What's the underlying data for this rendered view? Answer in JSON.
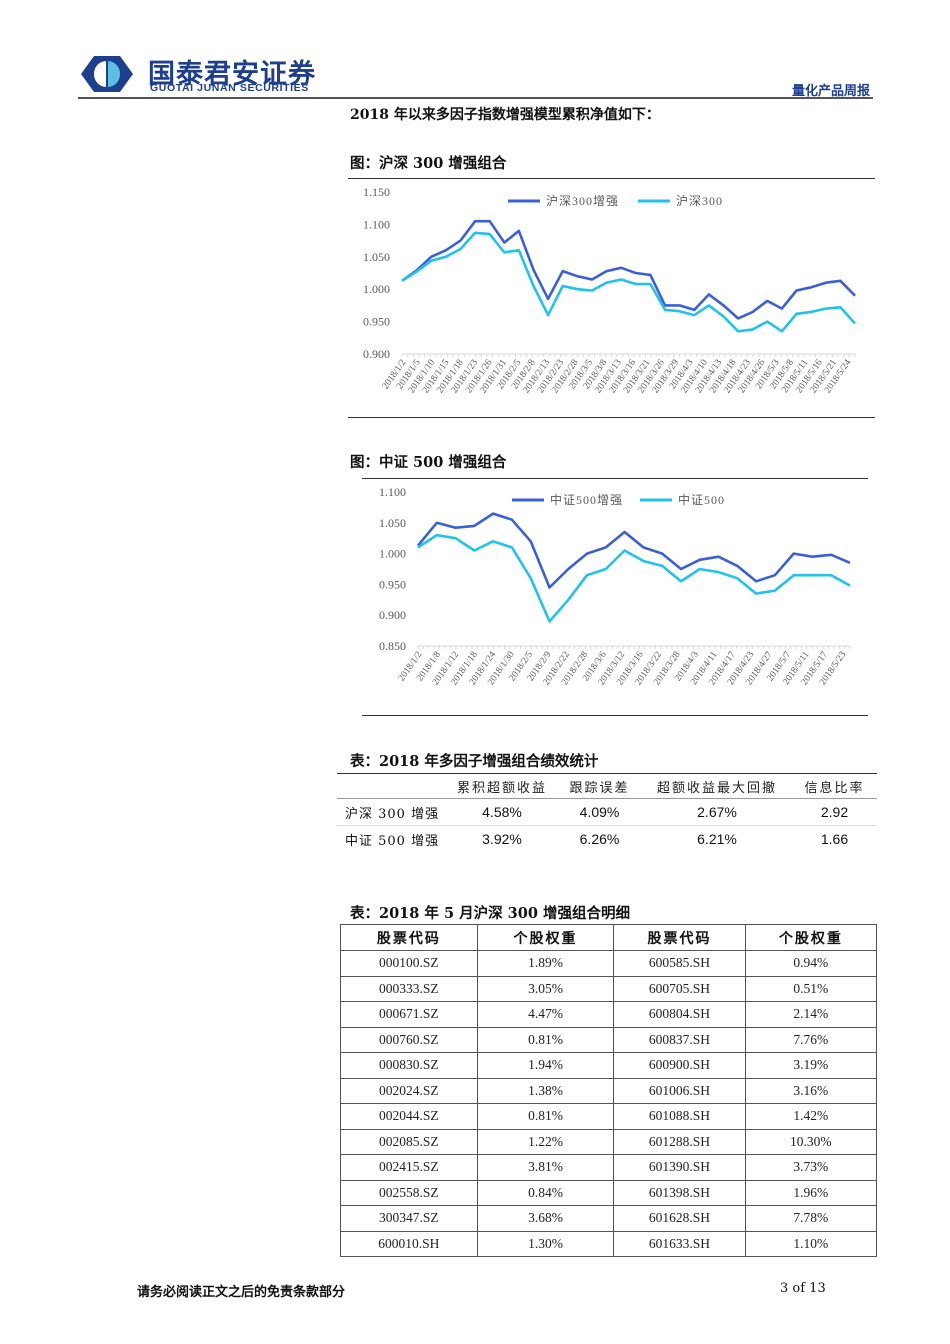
{
  "header": {
    "logo_cn": "国泰君安证券",
    "logo_en": "GUOTAI JUNAN SECURITIES",
    "report_type": "量化产品周报",
    "brand_color": "#1e3f8f",
    "logo_light": "#5bc0e0"
  },
  "intro": "2018 年以来多因子指数增强模型累积净值如下：",
  "figures": [
    {
      "title": "图：沪深 300 增强组合"
    },
    {
      "title": "图：中证 500 增强组合"
    }
  ],
  "chart_data": [
    {
      "type": "line",
      "title": "沪深300增强组合",
      "xlabel": "",
      "ylabel": "",
      "ylim": [
        0.9,
        1.15
      ],
      "yticks": [
        "0.900",
        "0.950",
        "1.000",
        "1.050",
        "1.100",
        "1.150"
      ],
      "legend_position": "top",
      "grid": false,
      "x": [
        "2018/1/2",
        "2018/1/5",
        "2018/1/10",
        "2018/1/15",
        "2018/1/18",
        "2018/1/23",
        "2018/1/26",
        "2018/1/31",
        "2018/2/5",
        "2018/2/8",
        "2018/2/13",
        "2018/2/23",
        "2018/2/28",
        "2018/3/5",
        "2018/3/8",
        "2018/3/13",
        "2018/3/16",
        "2018/3/21",
        "2018/3/26",
        "2018/3/29",
        "2018/4/3",
        "2018/4/10",
        "2018/4/13",
        "2018/4/18",
        "2018/4/23",
        "2018/4/26",
        "2018/5/3",
        "2018/5/8",
        "2018/5/11",
        "2018/5/16",
        "2018/5/21",
        "2018/5/24"
      ],
      "series": [
        {
          "name": "沪深300增强",
          "color": "#3a5fdc",
          "values": [
            1.013,
            1.029,
            1.05,
            1.06,
            1.075,
            1.105,
            1.105,
            1.072,
            1.09,
            1.03,
            0.985,
            1.028,
            1.02,
            1.015,
            1.028,
            1.033,
            1.025,
            1.022,
            0.975,
            0.975,
            0.968,
            0.992,
            0.975,
            0.955,
            0.965,
            0.982,
            0.97,
            0.998,
            1.003,
            1.01,
            1.013,
            0.99
          ]
        },
        {
          "name": "沪深300",
          "color": "#1fc3ee",
          "values": [
            1.013,
            1.027,
            1.044,
            1.05,
            1.062,
            1.087,
            1.085,
            1.057,
            1.06,
            1.005,
            0.96,
            1.005,
            1.0,
            0.998,
            1.01,
            1.015,
            1.008,
            1.008,
            0.968,
            0.966,
            0.96,
            0.975,
            0.958,
            0.935,
            0.938,
            0.95,
            0.935,
            0.962,
            0.965,
            0.97,
            0.972,
            0.947
          ]
        }
      ]
    },
    {
      "type": "line",
      "title": "中证500增强组合",
      "xlabel": "",
      "ylabel": "",
      "ylim": [
        0.85,
        1.1
      ],
      "yticks": [
        "0.850",
        "0.900",
        "0.950",
        "1.000",
        "1.050",
        "1.100"
      ],
      "legend_position": "top",
      "grid": false,
      "x": [
        "2018/1/2",
        "2018/1/8",
        "2018/1/12",
        "2018/1/18",
        "2018/1/24",
        "2018/1/30",
        "2018/2/5",
        "2018/2/9",
        "2018/2/22",
        "2018/2/28",
        "2018/3/6",
        "2018/3/12",
        "2018/3/16",
        "2018/3/22",
        "2018/3/28",
        "2018/4/3",
        "2018/4/11",
        "2018/4/17",
        "2018/4/23",
        "2018/4/27",
        "2018/5/7",
        "2018/5/11",
        "2018/5/17",
        "2018/5/23"
      ],
      "series": [
        {
          "name": "中证500增强",
          "color": "#3a5fdc",
          "values": [
            1.013,
            1.05,
            1.042,
            1.045,
            1.065,
            1.055,
            1.02,
            0.945,
            0.975,
            1.0,
            1.01,
            1.035,
            1.01,
            1.0,
            0.975,
            0.99,
            0.995,
            0.98,
            0.955,
            0.965,
            1.0,
            0.995,
            0.998,
            0.985
          ]
        },
        {
          "name": "中证500",
          "color": "#1fc3ee",
          "values": [
            1.01,
            1.03,
            1.025,
            1.005,
            1.02,
            1.01,
            0.96,
            0.89,
            0.925,
            0.965,
            0.975,
            1.005,
            0.988,
            0.98,
            0.955,
            0.975,
            0.97,
            0.96,
            0.935,
            0.94,
            0.965,
            0.965,
            0.965,
            0.948
          ]
        }
      ]
    }
  ],
  "stats_table": {
    "title": "表：2018 年多因子增强组合绩效统计",
    "headers": [
      "",
      "累积超额收益",
      "跟踪误差",
      "超额收益最大回撤",
      "信息比率"
    ],
    "rows": [
      {
        "name": "沪深 300 增强",
        "cum_excess": "4.58%",
        "tracking_error": "4.09%",
        "max_drawdown": "2.67%",
        "info_ratio": "2.92"
      },
      {
        "name": "中证 500 增强",
        "cum_excess": "3.92%",
        "tracking_error": "6.26%",
        "max_drawdown": "6.21%",
        "info_ratio": "1.66"
      }
    ]
  },
  "detail_table": {
    "title": "表：2018 年 5 月沪深 300 增强组合明细",
    "headers": [
      "股票代码",
      "个股权重",
      "股票代码",
      "个股权重"
    ],
    "rows": [
      [
        "000100.SZ",
        "1.89%",
        "600585.SH",
        "0.94%"
      ],
      [
        "000333.SZ",
        "3.05%",
        "600705.SH",
        "0.51%"
      ],
      [
        "000671.SZ",
        "4.47%",
        "600804.SH",
        "2.14%"
      ],
      [
        "000760.SZ",
        "0.81%",
        "600837.SH",
        "7.76%"
      ],
      [
        "000830.SZ",
        "1.94%",
        "600900.SH",
        "3.19%"
      ],
      [
        "002024.SZ",
        "1.38%",
        "601006.SH",
        "3.16%"
      ],
      [
        "002044.SZ",
        "0.81%",
        "601088.SH",
        "1.42%"
      ],
      [
        "002085.SZ",
        "1.22%",
        "601288.SH",
        "10.30%"
      ],
      [
        "002415.SZ",
        "3.81%",
        "601390.SH",
        "3.73%"
      ],
      [
        "002558.SZ",
        "0.84%",
        "601398.SH",
        "1.96%"
      ],
      [
        "300347.SZ",
        "3.68%",
        "601628.SH",
        "7.78%"
      ],
      [
        "600010.SH",
        "1.30%",
        "601633.SH",
        "1.10%"
      ]
    ]
  },
  "footer": {
    "disclaimer": "请务必阅读正文之后的免责条款部分",
    "page": "3 of 13"
  }
}
